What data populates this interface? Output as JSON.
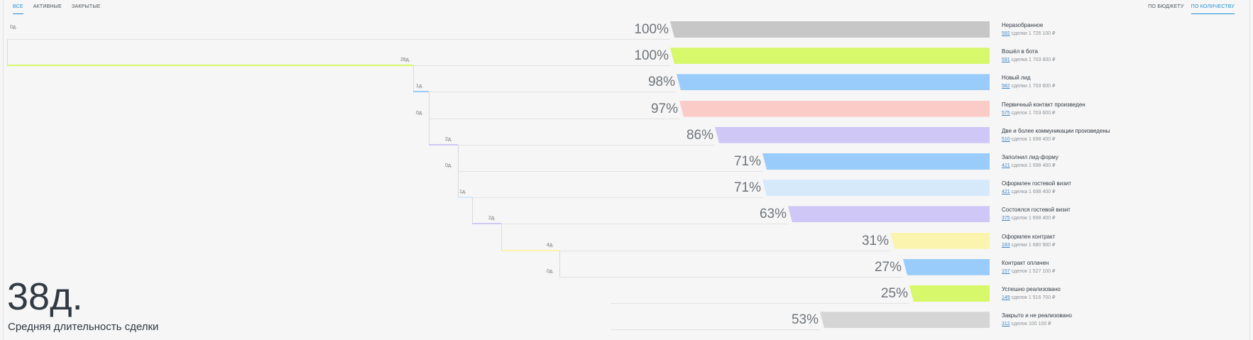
{
  "tabs_left": [
    {
      "label": "Все",
      "active": true
    },
    {
      "label": "Активные",
      "active": false
    },
    {
      "label": "Закрытые",
      "active": false
    }
  ],
  "tabs_right": [
    {
      "label": "По бюджету",
      "active": false
    },
    {
      "label": "По количеству",
      "active": true
    }
  ],
  "summary": {
    "avg_days": "38д.",
    "avg_label": "Средняя длительность сделки"
  },
  "stages": [
    {
      "title": "Неразобранное",
      "count": "592",
      "sub": "сделки 1 726 100 ₽",
      "pct": "100%",
      "share": 1.0,
      "color": "#c7c7c7",
      "duration": "0д."
    },
    {
      "title": "Вошёл в бота",
      "count": "591",
      "sub": "сделка 1 703 600 ₽",
      "pct": "100%",
      "share": 1.0,
      "color": "#d6f86a",
      "duration": "28д."
    },
    {
      "title": "Новый лид",
      "count": "582",
      "sub": "сделки 1 703 600 ₽",
      "pct": "98%",
      "share": 0.98,
      "color": "#99ccfb",
      "duration": "1д."
    },
    {
      "title": "Первичный контакт произведен",
      "count": "575",
      "sub": "сделок 1 703 600 ₽",
      "pct": "97%",
      "share": 0.97,
      "color": "#fbcbc8",
      "duration": "0д."
    },
    {
      "title": "Две и более коммуникации произведены",
      "count": "510",
      "sub": "сделок 1 698 400 ₽",
      "pct": "86%",
      "share": 0.86,
      "color": "#cfc8f6",
      "duration": "2д."
    },
    {
      "title": "Заполнил лид-форму",
      "count": "421",
      "sub": "сделка 1 698 400 ₽",
      "pct": "71%",
      "share": 0.71,
      "color": "#99ccfb",
      "duration": "0д."
    },
    {
      "title": "Оформлен гостевой визит",
      "count": "421",
      "sub": "сделка 1 698 400 ₽",
      "pct": "71%",
      "share": 0.71,
      "color": "#d5e9fb",
      "duration": "1д."
    },
    {
      "title": "Состоялся гостевой визит",
      "count": "375",
      "sub": "сделок 1 698 400 ₽",
      "pct": "63%",
      "share": 0.63,
      "color": "#cfc8f6",
      "duration": "2д."
    },
    {
      "title": "Оформлен контракт",
      "count": "183",
      "sub": "сделки 1 680 900 ₽",
      "pct": "31%",
      "share": 0.31,
      "color": "#fbf4ae",
      "duration": "4д."
    },
    {
      "title": "Контракт оплачен",
      "count": "157",
      "sub": "сделок 1 527 100 ₽",
      "pct": "27%",
      "share": 0.27,
      "color": "#99ccfb",
      "duration": "0д."
    },
    {
      "title": "Успешно реализовано",
      "count": "149",
      "sub": "сделок 1 516 700 ₽",
      "pct": "25%",
      "share": 0.25,
      "color": "#d6f86a",
      "duration": ""
    },
    {
      "title": "Закрыто и не реализовано",
      "count": "312",
      "sub": "сделок 100 100 ₽",
      "pct": "53%",
      "share": 0.53,
      "color": "#d5d5d5",
      "duration": ""
    }
  ]
}
